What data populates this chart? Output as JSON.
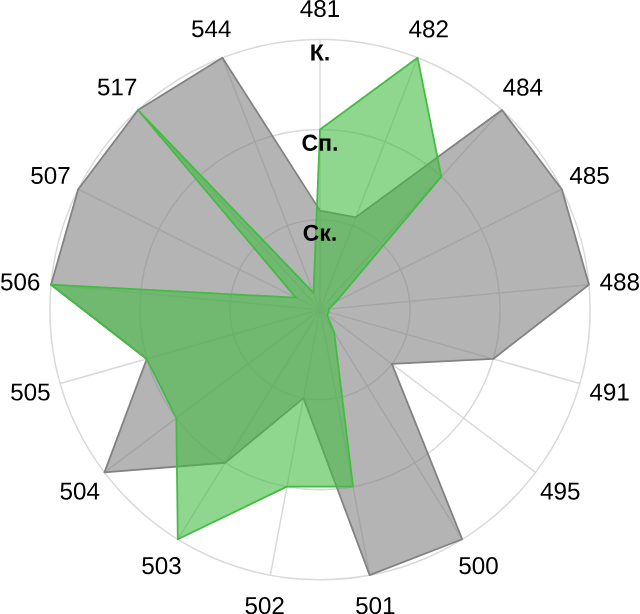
{
  "chart_data": {
    "type": "radar",
    "categories": [
      "481",
      "482",
      "484",
      "485",
      "488",
      "491",
      "495",
      "500",
      "501",
      "502",
      "503",
      "504",
      "505",
      "506",
      "507",
      "517",
      "544"
    ],
    "ylim": [
      0,
      3
    ],
    "yticks": [
      {
        "value": 1,
        "label": "Ск."
      },
      {
        "value": 2,
        "label": "Сп."
      },
      {
        "value": 3,
        "label": "К."
      }
    ],
    "grid": true,
    "series": [
      {
        "color": "#828282",
        "values": [
          1.1,
          1.1,
          3,
          3,
          3,
          2,
          1,
          3,
          3,
          1,
          2,
          3,
          2,
          3,
          3,
          3,
          3
        ]
      },
      {
        "color": "#44bb44",
        "values": [
          2,
          3,
          2,
          0.2,
          0.1,
          0.1,
          0.1,
          0.3,
          2,
          2,
          3,
          2,
          2,
          3,
          0.3,
          3,
          0.2
        ]
      }
    ]
  }
}
